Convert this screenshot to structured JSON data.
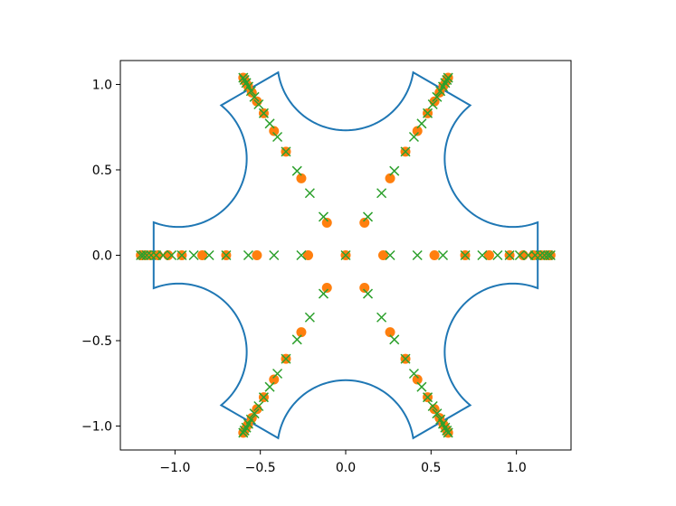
{
  "chart_data": {
    "type": "scatter",
    "title": "",
    "xlabel": "",
    "ylabel": "",
    "xlim": [
      -1.32,
      1.32
    ],
    "ylim": [
      -1.14,
      1.14
    ],
    "grid": false,
    "xticks": [
      {
        "value": -1.0,
        "label": "−1.0"
      },
      {
        "value": -0.5,
        "label": "−0.5"
      },
      {
        "value": 0.0,
        "label": "0.0"
      },
      {
        "value": 0.5,
        "label": "0.5"
      },
      {
        "value": 1.0,
        "label": "1.0"
      }
    ],
    "yticks": [
      {
        "value": -1.0,
        "label": "−1.0"
      },
      {
        "value": -0.5,
        "label": "−0.5"
      },
      {
        "value": 0.0,
        "label": "0.0"
      },
      {
        "value": 0.5,
        "label": "0.5"
      },
      {
        "value": 1.0,
        "label": "1.0"
      }
    ],
    "series": [
      {
        "kind": "line",
        "color": "#1f77b4",
        "curve": {
          "vertex_radius": 1.2,
          "arc_radius": 0.4,
          "vertex_angles_deg": [
            0,
            60,
            120,
            180,
            240,
            300
          ]
        }
      },
      {
        "kind": "scatter",
        "marker": "circle",
        "color": "#ff7f0e",
        "radii": [
          0.0,
          0.22,
          0.52,
          0.7,
          0.84,
          0.96,
          1.04,
          1.1,
          1.145,
          1.175,
          1.195,
          1.2
        ],
        "angles_deg": [
          0,
          60,
          120,
          180,
          240,
          300
        ]
      },
      {
        "kind": "scatter",
        "marker": "x",
        "color": "#2ca02c",
        "radii": [
          0.0,
          0.26,
          0.42,
          0.57,
          0.7,
          0.8,
          0.89,
          0.96,
          1.02,
          1.07,
          1.11,
          1.14,
          1.165,
          1.185,
          1.2
        ],
        "angles_deg": [
          0,
          60,
          120,
          180,
          240,
          300
        ]
      }
    ]
  }
}
